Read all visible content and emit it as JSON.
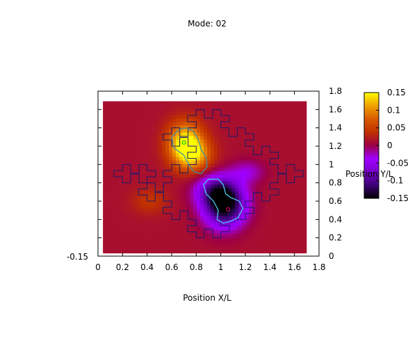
{
  "chart_data": {
    "type": "heatmap",
    "title": "Mode: 02",
    "xlabel": "Position X/L",
    "ylabel": "Position Y/L",
    "xlim": [
      0,
      1.8
    ],
    "ylim": [
      0,
      1.8
    ],
    "x_ticks": [
      {
        "value": 0,
        "label": "0"
      },
      {
        "value": 0.2,
        "label": "0.2"
      },
      {
        "value": 0.4,
        "label": "0.4"
      },
      {
        "value": 0.6,
        "label": "0.6"
      },
      {
        "value": 0.8,
        "label": "0.8"
      },
      {
        "value": 1.0,
        "label": "1"
      },
      {
        "value": 1.2,
        "label": "1.2"
      },
      {
        "value": 1.4,
        "label": "1.4"
      },
      {
        "value": 1.6,
        "label": "1.6"
      },
      {
        "value": 1.8,
        "label": "1.8"
      }
    ],
    "y_ticks": [
      {
        "value": 0,
        "label": "0"
      },
      {
        "value": 0.2,
        "label": "0.2"
      },
      {
        "value": 0.4,
        "label": "0.4"
      },
      {
        "value": 0.6,
        "label": "0.6"
      },
      {
        "value": 0.8,
        "label": "0.8"
      },
      {
        "value": 1.0,
        "label": "1"
      },
      {
        "value": 1.2,
        "label": "1.2"
      },
      {
        "value": 1.4,
        "label": "1.4"
      },
      {
        "value": 1.6,
        "label": "1.6"
      },
      {
        "value": 1.8,
        "label": "1.8"
      }
    ],
    "z_axis_label": "-0.15",
    "colorbar": {
      "range": [
        -0.15,
        0.15
      ],
      "ticks": [
        {
          "value": 0.15,
          "label": "0.15"
        },
        {
          "value": 0.1,
          "label": "0.1"
        },
        {
          "value": 0.05,
          "label": "0.05"
        },
        {
          "value": 0,
          "label": "0"
        },
        {
          "value": -0.05,
          "label": "-0.05"
        },
        {
          "value": -0.1,
          "label": "-0.1"
        },
        {
          "value": -0.15,
          "label": "-0.15"
        }
      ],
      "colors": [
        "#000000",
        "#3c0075",
        "#7a00cc",
        "#a000ff",
        "#9c0045",
        "#c03000",
        "#d85a00",
        "#f0a000",
        "#ffff00"
      ]
    },
    "field_extent": {
      "x": [
        0.04,
        1.7
      ],
      "y": [
        0.03,
        1.69
      ]
    },
    "background_value": 0.012,
    "blobs": [
      {
        "x": 0.71,
        "y": 1.23,
        "amplitude": 0.14,
        "sx": 0.1,
        "sy": 0.16
      },
      {
        "x": 0.79,
        "y": 1.1,
        "amplitude": 0.08,
        "sx": 0.1,
        "sy": 0.12
      },
      {
        "x": 1.03,
        "y": 0.56,
        "amplitude": -0.17,
        "sx": 0.12,
        "sy": 0.17
      },
      {
        "x": 0.95,
        "y": 0.72,
        "amplitude": -0.07,
        "sx": 0.12,
        "sy": 0.12
      },
      {
        "x": 1.22,
        "y": 0.92,
        "amplitude": -0.04,
        "sx": 0.1,
        "sy": 0.09
      },
      {
        "x": 0.42,
        "y": 0.6,
        "amplitude": 0.03,
        "sx": 0.1,
        "sy": 0.1
      }
    ],
    "extrema_markers": [
      {
        "x": 0.7,
        "y": 1.24,
        "color": "#00cc00"
      },
      {
        "x": 1.06,
        "y": 0.51,
        "color": "#cc0066"
      }
    ],
    "contours": [
      {
        "color": "#3a8fb0",
        "points": [
          [
            0.66,
            1.38
          ],
          [
            0.6,
            1.3
          ],
          [
            0.62,
            1.18
          ],
          [
            0.7,
            1.1
          ],
          [
            0.74,
            1.0
          ],
          [
            0.78,
            0.92
          ],
          [
            0.84,
            0.9
          ],
          [
            0.89,
            0.98
          ],
          [
            0.88,
            1.08
          ],
          [
            0.84,
            1.16
          ],
          [
            0.82,
            1.26
          ],
          [
            0.78,
            1.36
          ],
          [
            0.72,
            1.4
          ],
          [
            0.66,
            1.38
          ]
        ]
      },
      {
        "color": "#4fd8ff",
        "points": [
          [
            0.86,
            0.78
          ],
          [
            0.9,
            0.84
          ],
          [
            0.98,
            0.84
          ],
          [
            1.02,
            0.78
          ],
          [
            1.04,
            0.68
          ],
          [
            1.08,
            0.64
          ],
          [
            1.15,
            0.6
          ],
          [
            1.18,
            0.52
          ],
          [
            1.14,
            0.42
          ],
          [
            1.08,
            0.38
          ],
          [
            1.02,
            0.36
          ],
          [
            0.97,
            0.4
          ],
          [
            0.98,
            0.5
          ],
          [
            0.94,
            0.6
          ],
          [
            0.88,
            0.68
          ],
          [
            0.86,
            0.78
          ]
        ]
      }
    ],
    "koch_outline": {
      "color": "#1a1a6a",
      "points": [
        [
          0.2,
          1.0
        ],
        [
          0.4,
          1.0
        ],
        [
          0.4,
          0.8
        ],
        [
          0.6,
          0.8
        ],
        [
          0.6,
          1.0
        ],
        [
          0.8,
          1.0
        ],
        [
          0.8,
          1.2
        ],
        [
          0.6,
          1.2
        ],
        [
          0.6,
          1.4
        ],
        [
          0.8,
          1.4
        ],
        [
          0.8,
          1.6
        ],
        [
          1.0,
          1.6
        ],
        [
          1.0,
          1.4
        ],
        [
          1.2,
          1.4
        ],
        [
          1.2,
          1.2
        ],
        [
          1.4,
          1.2
        ],
        [
          1.4,
          1.0
        ],
        [
          1.6,
          1.0
        ],
        [
          1.6,
          0.8
        ],
        [
          1.4,
          0.8
        ],
        [
          1.4,
          0.6
        ],
        [
          1.2,
          0.6
        ],
        [
          1.2,
          0.4
        ],
        [
          1.0,
          0.4
        ],
        [
          1.0,
          0.2
        ],
        [
          0.8,
          0.2
        ],
        [
          0.8,
          0.4
        ],
        [
          0.6,
          0.4
        ],
        [
          0.6,
          0.6
        ],
        [
          0.4,
          0.6
        ],
        [
          0.4,
          0.8
        ],
        [
          0.2,
          0.8
        ],
        [
          0.2,
          1.0
        ]
      ],
      "notch": 0.07
    }
  }
}
